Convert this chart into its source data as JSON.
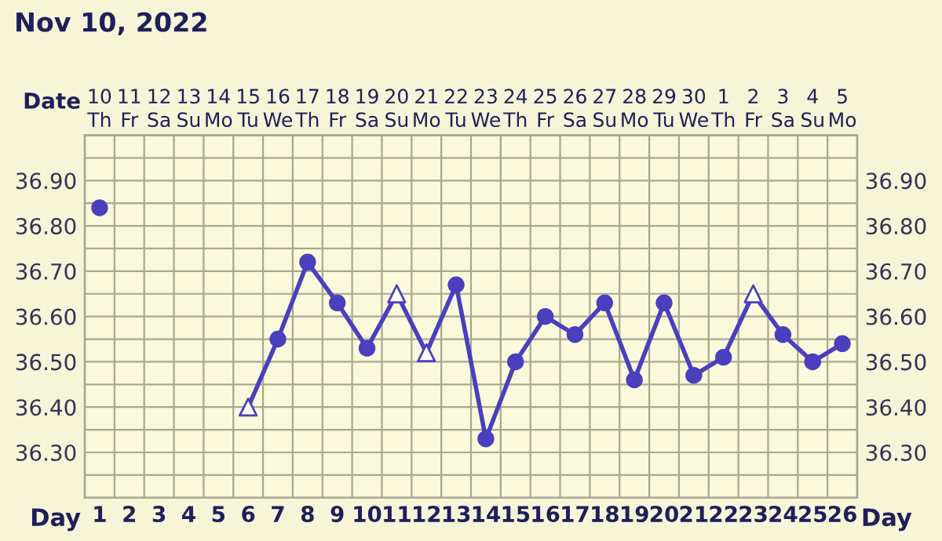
{
  "chart_data": {
    "type": "line",
    "title": "Nov 10, 2022",
    "xlabel": "Day",
    "x2label": "Date",
    "x": [
      1,
      2,
      3,
      4,
      5,
      6,
      7,
      8,
      9,
      10,
      11,
      12,
      13,
      14,
      15,
      16,
      17,
      18,
      19,
      20,
      21,
      22,
      23,
      24,
      25,
      26
    ],
    "xlim": [
      0.5,
      26.5
    ],
    "xticks": [
      1,
      2,
      3,
      4,
      5,
      6,
      7,
      8,
      9,
      10,
      11,
      12,
      13,
      14,
      15,
      16,
      17,
      18,
      19,
      20,
      21,
      22,
      23,
      24,
      25,
      26
    ],
    "x2lim": [
      "2022-11-09T12:00",
      "2022-12-05T12:00"
    ],
    "x2ticks": [
      {
        "value": "2022-11-10",
        "label": "10\nTh"
      },
      {
        "value": "2022-11-11",
        "label": "11\nFr"
      },
      {
        "value": "2022-11-12",
        "label": "12\nSa"
      },
      {
        "value": "2022-11-13",
        "label": "13\nSu"
      },
      {
        "value": "2022-11-14",
        "label": "14\nMo"
      },
      {
        "value": "2022-11-15",
        "label": "15\nTu"
      },
      {
        "value": "2022-11-16",
        "label": "16\nWe"
      },
      {
        "value": "2022-11-17",
        "label": "17\nTh"
      },
      {
        "value": "2022-11-18",
        "label": "18\nFr"
      },
      {
        "value": "2022-11-19",
        "label": "19\nSa"
      },
      {
        "value": "2022-11-20",
        "label": "20\nSu"
      },
      {
        "value": "2022-11-21",
        "label": "21\nMo"
      },
      {
        "value": "2022-11-22",
        "label": "22\nTu"
      },
      {
        "value": "2022-11-23",
        "label": "23\nWe"
      },
      {
        "value": "2022-11-24",
        "label": "24\nTh"
      },
      {
        "value": "2022-11-25",
        "label": "25\nFr"
      },
      {
        "value": "2022-11-26",
        "label": "26\nSa"
      },
      {
        "value": "2022-11-27",
        "label": "27\nSu"
      },
      {
        "value": "2022-11-28",
        "label": "28\nMo"
      },
      {
        "value": "2022-11-29",
        "label": "29\nTu"
      },
      {
        "value": "2022-11-30",
        "label": "30\nWe"
      },
      {
        "value": "2022-12-01",
        "label": "1\nTh"
      },
      {
        "value": "2022-12-02",
        "label": "2\nFr"
      },
      {
        "value": "2022-12-03",
        "label": "3\nSa"
      },
      {
        "value": "2022-12-04",
        "label": "4\nSu"
      },
      {
        "value": "2022-12-05",
        "label": "5\nMo"
      }
    ],
    "series": [
      {
        "color": "#4a3fbd",
        "marker": "none",
        "values": [
          null,
          null,
          null,
          null,
          null,
          36.4,
          36.55,
          36.72,
          36.63,
          36.53,
          36.65,
          36.52,
          36.67,
          36.33,
          36.5,
          36.6,
          36.56,
          36.63,
          36.46,
          36.63,
          36.47,
          36.51,
          36.65,
          36.56,
          36.5,
          36.54
        ]
      },
      {
        "type": "scatter",
        "color": "#4a3fbd",
        "marker": "circle",
        "values": [
          36.84,
          null,
          null,
          null,
          null,
          null,
          36.55,
          36.72,
          36.63,
          36.53,
          null,
          null,
          36.67,
          36.33,
          36.5,
          36.6,
          36.56,
          36.63,
          36.46,
          36.63,
          36.47,
          36.51,
          null,
          36.56,
          36.5,
          36.54
        ]
      },
      {
        "type": "scatter",
        "color": "#4a3fbd",
        "marker": "triangle",
        "values": [
          null,
          null,
          null,
          null,
          null,
          36.4,
          null,
          null,
          null,
          null,
          36.65,
          36.52,
          null,
          null,
          null,
          null,
          null,
          null,
          null,
          null,
          null,
          null,
          36.65,
          null,
          null,
          null
        ]
      }
    ],
    "ylim": [
      36.2,
      37.0
    ],
    "yticks": [
      {
        "value": 36.25,
        "label": null
      },
      {
        "value": 36.3,
        "label": "36.30"
      },
      {
        "value": 36.35,
        "label": null
      },
      {
        "value": 36.4,
        "label": "36.40"
      },
      {
        "value": 36.45,
        "label": null
      },
      {
        "value": 36.5,
        "label": "36.50"
      },
      {
        "value": 36.55,
        "label": null
      },
      {
        "value": 36.6,
        "label": "36.60"
      },
      {
        "value": 36.65,
        "label": null
      },
      {
        "value": 36.7,
        "label": "36.70"
      },
      {
        "value": 36.75,
        "label": null
      },
      {
        "value": 36.8,
        "label": "36.80"
      },
      {
        "value": 36.85,
        "label": null
      },
      {
        "value": 36.9,
        "label": "36.90"
      },
      {
        "value": 36.95,
        "label": null
      }
    ],
    "y2lim": [
      36.2,
      37.0
    ],
    "y2ticks": [
      {
        "value": 36.3,
        "label": "36.30"
      },
      {
        "value": 36.4,
        "label": "36.40"
      },
      {
        "value": 36.5,
        "label": "36.50"
      },
      {
        "value": 36.6,
        "label": "36.60"
      },
      {
        "value": 36.7,
        "label": "36.70"
      },
      {
        "value": 36.8,
        "label": "36.80"
      },
      {
        "value": 36.9,
        "label": "36.90"
      }
    ],
    "grid": true
  }
}
